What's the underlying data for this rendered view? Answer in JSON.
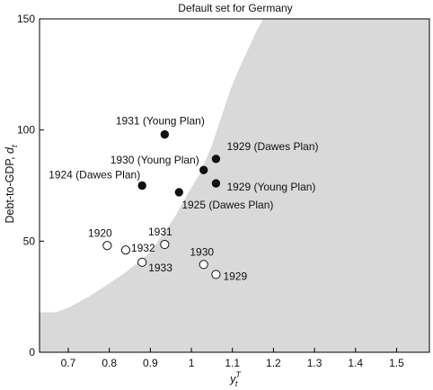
{
  "chart_data": {
    "type": "scatter",
    "title": "Default set for Germany",
    "xlabel": "y_t^T",
    "xlabel_parts": {
      "base": "y",
      "sub": "t",
      "sup": "T"
    },
    "ylabel": "Debt-to-GDP, d_t",
    "ylabel_parts": {
      "text": "Debt-to-GDP, ",
      "base": "d",
      "sub": "t"
    },
    "xlim": [
      0.63,
      1.58
    ],
    "ylim": [
      0,
      150
    ],
    "xticks": [
      0.7,
      0.8,
      0.9,
      1.0,
      1.1,
      1.2,
      1.3,
      1.4,
      1.5
    ],
    "xtick_labels": [
      "0.7",
      "0.8",
      "0.9",
      "1",
      "1.1",
      "1.2",
      "1.3",
      "1.4",
      "1.5"
    ],
    "yticks": [
      0,
      50,
      100,
      150
    ],
    "ytick_labels": [
      "0",
      "50",
      "100",
      "150"
    ],
    "grid": false,
    "default_region": {
      "fill": "#d9d9d9",
      "boundary": [
        {
          "x": 0.63,
          "y": 18
        },
        {
          "x": 0.67,
          "y": 18
        },
        {
          "x": 0.7,
          "y": 20
        },
        {
          "x": 0.75,
          "y": 25
        },
        {
          "x": 0.8,
          "y": 31
        },
        {
          "x": 0.84,
          "y": 36
        },
        {
          "x": 0.88,
          "y": 42
        },
        {
          "x": 0.9,
          "y": 45
        },
        {
          "x": 0.93,
          "y": 53
        },
        {
          "x": 0.96,
          "y": 61
        },
        {
          "x": 0.99,
          "y": 71
        },
        {
          "x": 1.02,
          "y": 80
        },
        {
          "x": 1.05,
          "y": 93
        },
        {
          "x": 1.075,
          "y": 107
        },
        {
          "x": 1.095,
          "y": 118
        },
        {
          "x": 1.115,
          "y": 127
        },
        {
          "x": 1.14,
          "y": 137
        },
        {
          "x": 1.16,
          "y": 145
        },
        {
          "x": 1.175,
          "y": 150
        }
      ]
    },
    "series": [
      {
        "marker": "filled",
        "points": [
          {
            "x": 0.935,
            "y": 98,
            "label": "1931 (Young Plan)"
          },
          {
            "x": 1.06,
            "y": 87,
            "label": "1929 (Dawes Plan)"
          },
          {
            "x": 1.03,
            "y": 82,
            "label": "1930 (Young Plan)"
          },
          {
            "x": 1.06,
            "y": 76,
            "label": "1929 (Young Plan)"
          },
          {
            "x": 0.88,
            "y": 75,
            "label": "1924 (Dawes Plan)"
          },
          {
            "x": 0.97,
            "y": 72,
            "label": "1925 (Dawes Plan)"
          }
        ]
      },
      {
        "marker": "open",
        "points": [
          {
            "x": 0.795,
            "y": 48,
            "label": "1920"
          },
          {
            "x": 0.935,
            "y": 48.5,
            "label": "1931"
          },
          {
            "x": 0.84,
            "y": 46,
            "label": "1932"
          },
          {
            "x": 0.88,
            "y": 40.5,
            "label": "1933"
          },
          {
            "x": 1.03,
            "y": 39.5,
            "label": "1930"
          },
          {
            "x": 1.06,
            "y": 35,
            "label": "1929"
          }
        ]
      }
    ]
  }
}
